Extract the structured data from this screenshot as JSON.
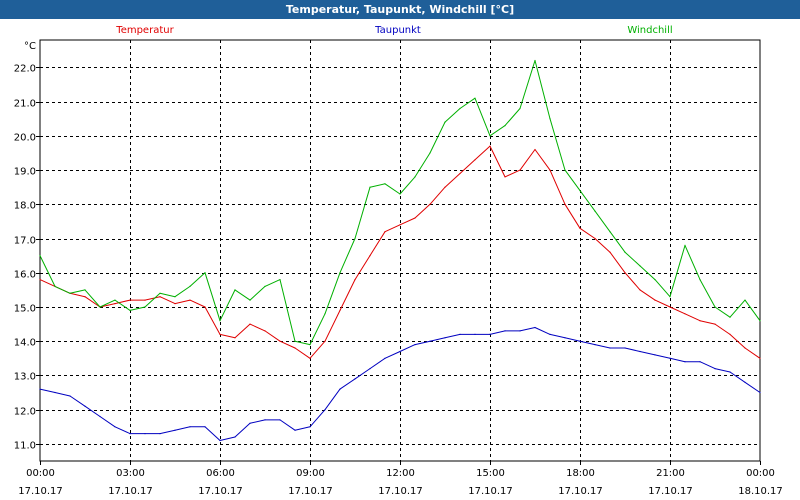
{
  "window": {
    "title": "Temperatur, Taupunkt, Windchill [°C]"
  },
  "chart_data": {
    "type": "line",
    "title": "Temperatur, Taupunkt, Windchill [°C]",
    "ylabel": "°C",
    "ylim": [
      10.5,
      22.8
    ],
    "yticks": [
      11.0,
      12.0,
      13.0,
      14.0,
      15.0,
      16.0,
      17.0,
      18.0,
      19.0,
      20.0,
      21.0,
      22.0
    ],
    "xlim": [
      0,
      24
    ],
    "xticks": [
      {
        "x": 0,
        "time": "00:00",
        "date": "17.10.17"
      },
      {
        "x": 3,
        "time": "03:00",
        "date": "17.10.17"
      },
      {
        "x": 6,
        "time": "06:00",
        "date": "17.10.17"
      },
      {
        "x": 9,
        "time": "09:00",
        "date": "17.10.17"
      },
      {
        "x": 12,
        "time": "12:00",
        "date": "17.10.17"
      },
      {
        "x": 15,
        "time": "15:00",
        "date": "17.10.17"
      },
      {
        "x": 18,
        "time": "18:00",
        "date": "17.10.17"
      },
      {
        "x": 21,
        "time": "21:00",
        "date": "17.10.17"
      },
      {
        "x": 24,
        "time": "00:00",
        "date": "18.10.17"
      }
    ],
    "grid": true,
    "legend_position": "top",
    "series": [
      {
        "name": "Temperatur",
        "color": "#e00000",
        "points": [
          [
            0,
            15.8
          ],
          [
            0.5,
            15.6
          ],
          [
            1,
            15.4
          ],
          [
            1.5,
            15.3
          ],
          [
            2,
            15.0
          ],
          [
            2.5,
            15.1
          ],
          [
            3,
            15.2
          ],
          [
            3.5,
            15.2
          ],
          [
            4,
            15.3
          ],
          [
            4.5,
            15.1
          ],
          [
            5,
            15.2
          ],
          [
            5.5,
            15.0
          ],
          [
            6,
            14.2
          ],
          [
            6.5,
            14.1
          ],
          [
            7,
            14.5
          ],
          [
            7.5,
            14.3
          ],
          [
            8,
            14.0
          ],
          [
            8.5,
            13.8
          ],
          [
            9,
            13.5
          ],
          [
            9.5,
            14.0
          ],
          [
            10,
            14.9
          ],
          [
            10.5,
            15.8
          ],
          [
            11,
            16.5
          ],
          [
            11.5,
            17.2
          ],
          [
            12,
            17.4
          ],
          [
            12.5,
            17.6
          ],
          [
            13,
            18.0
          ],
          [
            13.5,
            18.5
          ],
          [
            14,
            18.9
          ],
          [
            14.5,
            19.3
          ],
          [
            15,
            19.7
          ],
          [
            15.5,
            18.8
          ],
          [
            16,
            19.0
          ],
          [
            16.5,
            19.6
          ],
          [
            17,
            19.0
          ],
          [
            17.5,
            18.0
          ],
          [
            18,
            17.3
          ],
          [
            18.5,
            17.0
          ],
          [
            19,
            16.6
          ],
          [
            19.5,
            16.0
          ],
          [
            20,
            15.5
          ],
          [
            20.5,
            15.2
          ],
          [
            21,
            15.0
          ],
          [
            21.5,
            14.8
          ],
          [
            22,
            14.6
          ],
          [
            22.5,
            14.5
          ],
          [
            23,
            14.2
          ],
          [
            23.5,
            13.8
          ],
          [
            24,
            13.5
          ]
        ]
      },
      {
        "name": "Taupunkt",
        "color": "#0000c0",
        "points": [
          [
            0,
            12.6
          ],
          [
            0.5,
            12.5
          ],
          [
            1,
            12.4
          ],
          [
            1.5,
            12.1
          ],
          [
            2,
            11.8
          ],
          [
            2.5,
            11.5
          ],
          [
            3,
            11.3
          ],
          [
            3.5,
            11.3
          ],
          [
            4,
            11.3
          ],
          [
            4.5,
            11.4
          ],
          [
            5,
            11.5
          ],
          [
            5.5,
            11.5
          ],
          [
            6,
            11.1
          ],
          [
            6.5,
            11.2
          ],
          [
            7,
            11.6
          ],
          [
            7.5,
            11.7
          ],
          [
            8,
            11.7
          ],
          [
            8.5,
            11.4
          ],
          [
            9,
            11.5
          ],
          [
            9.5,
            12.0
          ],
          [
            10,
            12.6
          ],
          [
            10.5,
            12.9
          ],
          [
            11,
            13.2
          ],
          [
            11.5,
            13.5
          ],
          [
            12,
            13.7
          ],
          [
            12.5,
            13.9
          ],
          [
            13,
            14.0
          ],
          [
            13.5,
            14.1
          ],
          [
            14,
            14.2
          ],
          [
            14.5,
            14.2
          ],
          [
            15,
            14.2
          ],
          [
            15.5,
            14.3
          ],
          [
            16,
            14.3
          ],
          [
            16.5,
            14.4
          ],
          [
            17,
            14.2
          ],
          [
            17.5,
            14.1
          ],
          [
            18,
            14.0
          ],
          [
            18.5,
            13.9
          ],
          [
            19,
            13.8
          ],
          [
            19.5,
            13.8
          ],
          [
            20,
            13.7
          ],
          [
            20.5,
            13.6
          ],
          [
            21,
            13.5
          ],
          [
            21.5,
            13.4
          ],
          [
            22,
            13.4
          ],
          [
            22.5,
            13.2
          ],
          [
            23,
            13.1
          ],
          [
            23.5,
            12.8
          ],
          [
            24,
            12.5
          ]
        ]
      },
      {
        "name": "Windchill",
        "color": "#00b000",
        "points": [
          [
            0,
            16.5
          ],
          [
            0.5,
            15.6
          ],
          [
            1,
            15.4
          ],
          [
            1.5,
            15.5
          ],
          [
            2,
            15.0
          ],
          [
            2.5,
            15.2
          ],
          [
            3,
            14.9
          ],
          [
            3.5,
            15.0
          ],
          [
            4,
            15.4
          ],
          [
            4.5,
            15.3
          ],
          [
            5,
            15.6
          ],
          [
            5.5,
            16.0
          ],
          [
            6,
            14.6
          ],
          [
            6.5,
            15.5
          ],
          [
            7,
            15.2
          ],
          [
            7.5,
            15.6
          ],
          [
            8,
            15.8
          ],
          [
            8.5,
            14.0
          ],
          [
            9,
            13.9
          ],
          [
            9.5,
            14.8
          ],
          [
            10,
            16.0
          ],
          [
            10.5,
            17.0
          ],
          [
            11,
            18.5
          ],
          [
            11.5,
            18.6
          ],
          [
            12,
            18.3
          ],
          [
            12.5,
            18.8
          ],
          [
            13,
            19.5
          ],
          [
            13.5,
            20.4
          ],
          [
            14,
            20.8
          ],
          [
            14.5,
            21.1
          ],
          [
            15,
            20.0
          ],
          [
            15.5,
            20.3
          ],
          [
            16,
            20.8
          ],
          [
            16.5,
            22.2
          ],
          [
            17,
            20.5
          ],
          [
            17.5,
            19.0
          ],
          [
            18,
            18.4
          ],
          [
            18.5,
            17.8
          ],
          [
            19,
            17.2
          ],
          [
            19.5,
            16.6
          ],
          [
            20,
            16.2
          ],
          [
            20.5,
            15.8
          ],
          [
            21,
            15.3
          ],
          [
            21.5,
            16.8
          ],
          [
            22,
            15.8
          ],
          [
            22.5,
            15.0
          ],
          [
            23,
            14.7
          ],
          [
            23.5,
            15.2
          ],
          [
            24,
            14.6
          ]
        ]
      }
    ]
  }
}
